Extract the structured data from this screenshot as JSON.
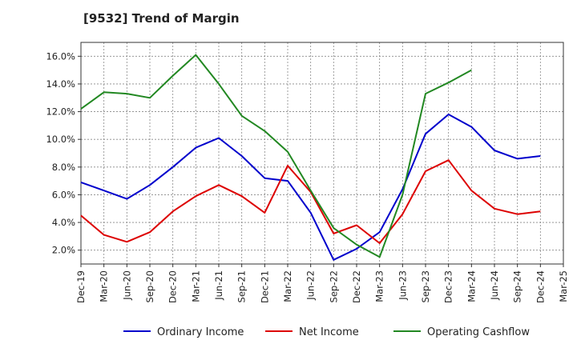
{
  "chart_data": {
    "type": "line",
    "title": "[9532]  Trend of Margin",
    "xlabel": "",
    "ylabel": "",
    "categories": [
      "Dec-19",
      "Mar-20",
      "Jun-20",
      "Sep-20",
      "Dec-20",
      "Mar-21",
      "Jun-21",
      "Sep-21",
      "Dec-21",
      "Mar-22",
      "Jun-22",
      "Sep-22",
      "Dec-22",
      "Mar-23",
      "Jun-23",
      "Sep-23",
      "Dec-23",
      "Mar-24",
      "Jun-24",
      "Sep-24",
      "Dec-24",
      "Mar-25"
    ],
    "ylim": [
      1.0,
      17.0
    ],
    "yticks": [
      2.0,
      4.0,
      6.0,
      8.0,
      10.0,
      12.0,
      14.0,
      16.0
    ],
    "ytick_labels": [
      "2.0%",
      "4.0%",
      "6.0%",
      "8.0%",
      "10.0%",
      "12.0%",
      "14.0%",
      "16.0%"
    ],
    "grid": true,
    "legend_position": "bottom",
    "series": [
      {
        "name": "Ordinary Income",
        "color": "#0000cc",
        "values": [
          6.9,
          6.3,
          5.7,
          6.7,
          8.0,
          9.4,
          10.1,
          8.8,
          7.2,
          7.0,
          4.7,
          1.3,
          2.1,
          3.3,
          6.4,
          10.4,
          11.8,
          10.9,
          9.2,
          8.6,
          8.8,
          null
        ]
      },
      {
        "name": "Net Income",
        "color": "#dd0000",
        "values": [
          4.5,
          3.1,
          2.6,
          3.3,
          4.8,
          5.9,
          6.7,
          5.9,
          4.7,
          8.1,
          6.2,
          3.2,
          3.8,
          2.5,
          4.6,
          7.7,
          8.5,
          6.3,
          5.0,
          4.6,
          4.8,
          null
        ]
      },
      {
        "name": "Operating Cashflow",
        "color": "#228822",
        "values": [
          12.2,
          13.4,
          13.3,
          13.0,
          14.6,
          16.1,
          14.0,
          11.7,
          10.6,
          9.1,
          6.3,
          3.6,
          2.4,
          1.5,
          6.0,
          13.3,
          14.1,
          15.0,
          null,
          null,
          null,
          null
        ]
      }
    ]
  }
}
